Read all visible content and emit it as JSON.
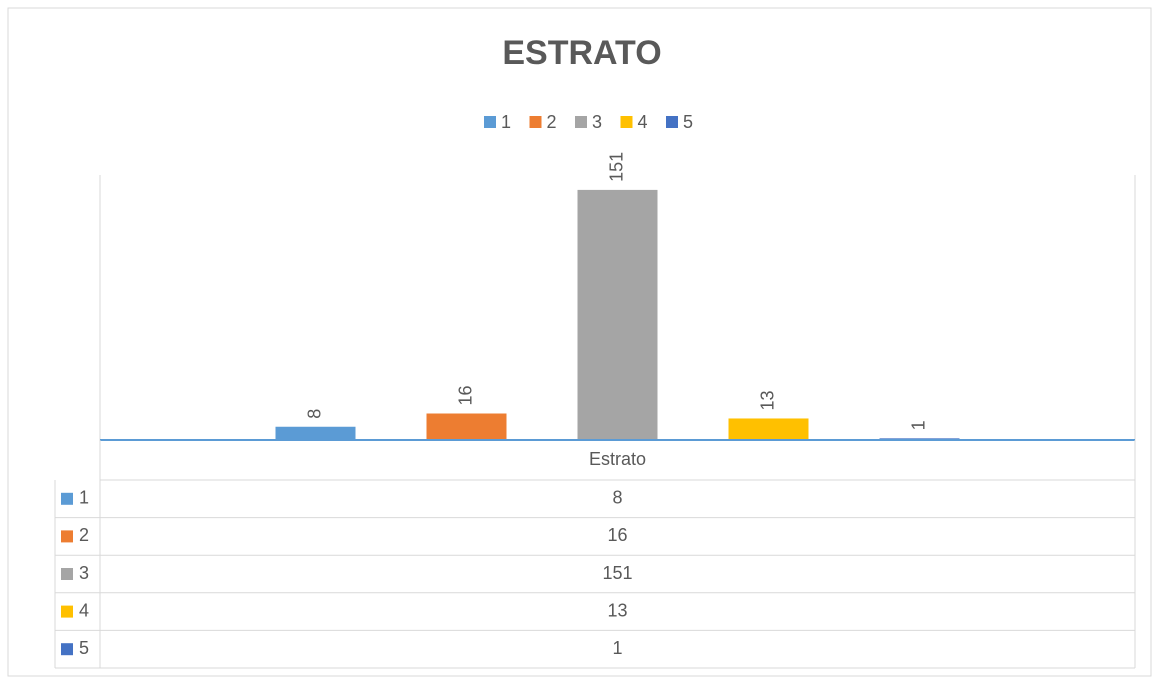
{
  "chart_data": {
    "type": "bar",
    "title": "ESTRATO",
    "categories": [
      "Estrato"
    ],
    "series": [
      {
        "name": "1",
        "color": "#5b9bd5",
        "values": [
          8
        ]
      },
      {
        "name": "2",
        "color": "#ed7d31",
        "values": [
          16
        ]
      },
      {
        "name": "3",
        "color": "#a5a5a5",
        "values": [
          151
        ]
      },
      {
        "name": "4",
        "color": "#ffc000",
        "values": [
          13
        ]
      },
      {
        "name": "5",
        "color": "#4472c4",
        "values": [
          1
        ]
      }
    ],
    "ylim": [
      0,
      160
    ],
    "legend": "top",
    "data_table": true
  }
}
